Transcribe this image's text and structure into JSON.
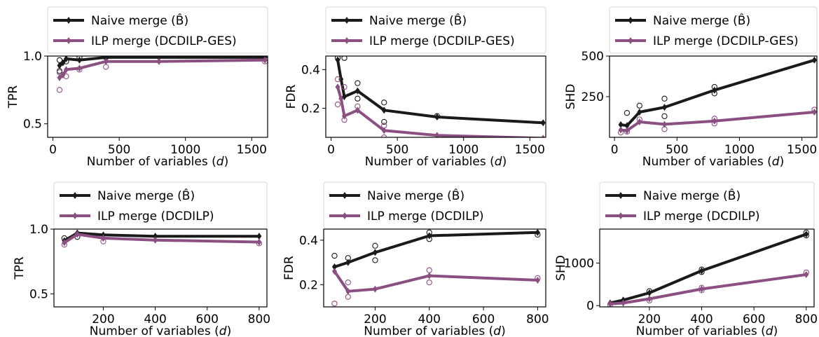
{
  "chart_data": [
    {
      "type": "line",
      "row": "top",
      "xlabel": "Number of variables (d)",
      "ylabel": "TPR",
      "xlim": [
        -40,
        1620
      ],
      "ylim": [
        0.4,
        1.0
      ],
      "xticks": [
        0,
        500,
        1000,
        1500
      ],
      "yticks": [
        0.5,
        1.0
      ],
      "ytick_labels": [
        "0.5",
        "1.0"
      ],
      "series": [
        {
          "name": "Naive merge (B̂)",
          "color": "#1a1a1a",
          "x": [
            50,
            75,
            100,
            200,
            400,
            800,
            1600
          ],
          "y": [
            0.93,
            0.95,
            0.98,
            0.97,
            0.99,
            0.99,
            0.99
          ],
          "samples": [
            [
              50,
              0.89
            ],
            [
              50,
              0.97
            ],
            [
              100,
              0.96
            ],
            [
              200,
              0.99
            ],
            [
              400,
              0.99
            ]
          ]
        },
        {
          "name": "ILP merge (DCDILP-GES)",
          "color": "#8b4f82",
          "x": [
            50,
            75,
            100,
            200,
            400,
            800,
            1600
          ],
          "y": [
            0.84,
            0.86,
            0.9,
            0.91,
            0.96,
            0.96,
            0.97
          ],
          "samples": [
            [
              50,
              0.75
            ],
            [
              50,
              0.88
            ],
            [
              100,
              0.85
            ],
            [
              200,
              0.9
            ],
            [
              400,
              0.92
            ],
            [
              1600,
              0.96
            ]
          ]
        }
      ]
    },
    {
      "type": "line",
      "row": "top",
      "xlabel": "Number of variables (d)",
      "ylabel": "FDR",
      "xlim": [
        -40,
        1620
      ],
      "ylim": [
        0.05,
        0.47
      ],
      "xticks": [
        0,
        500,
        1000,
        1500
      ],
      "yticks": [
        0.2,
        0.4
      ],
      "ytick_labels": [
        "0.2",
        "0.4"
      ],
      "series": [
        {
          "name": "Naive merge (B̂)",
          "color": "#1a1a1a",
          "x": [
            50,
            75,
            100,
            200,
            400,
            800,
            1600
          ],
          "y": [
            0.45,
            0.35,
            0.26,
            0.29,
            0.19,
            0.155,
            0.125
          ],
          "samples": [
            [
              50,
              0.46
            ],
            [
              100,
              0.46
            ],
            [
              200,
              0.33
            ],
            [
              200,
              0.25
            ],
            [
              400,
              0.23
            ],
            [
              400,
              0.13
            ],
            [
              800,
              0.16
            ]
          ]
        },
        {
          "name": "ILP merge (DCDILP-GES)",
          "color": "#8b4f82",
          "x": [
            50,
            75,
            100,
            200,
            400,
            800,
            1600
          ],
          "y": [
            0.31,
            0.25,
            0.16,
            0.19,
            0.085,
            0.06,
            0.045
          ],
          "samples": [
            [
              50,
              0.35
            ],
            [
              50,
              0.22
            ],
            [
              100,
              0.31
            ],
            [
              100,
              0.14
            ],
            [
              200,
              0.21
            ],
            [
              400,
              0.11
            ],
            [
              400,
              0.05
            ]
          ]
        }
      ]
    },
    {
      "type": "line",
      "row": "top",
      "xlabel": "Number of variables (d)",
      "ylabel": "SHD",
      "xlim": [
        -40,
        1620
      ],
      "ylim": [
        0,
        500
      ],
      "xticks": [
        0,
        500,
        1000,
        1500
      ],
      "yticks": [
        250,
        500
      ],
      "ytick_labels": [
        "250",
        "500"
      ],
      "series": [
        {
          "name": "Naive merge (B̂)",
          "color": "#1a1a1a",
          "x": [
            50,
            100,
            200,
            400,
            800,
            1600
          ],
          "y": [
            78,
            72,
            155,
            185,
            290,
            475
          ],
          "samples": [
            [
              100,
              150
            ],
            [
              200,
              195
            ],
            [
              400,
              238
            ],
            [
              400,
              130
            ],
            [
              800,
              310
            ],
            [
              800,
              270
            ]
          ]
        },
        {
          "name": "ILP merge (DCDILP-GES)",
          "color": "#8b4f82",
          "x": [
            50,
            100,
            200,
            400,
            800,
            1600
          ],
          "y": [
            45,
            42,
            95,
            80,
            100,
            155
          ],
          "samples": [
            [
              50,
              30
            ],
            [
              100,
              35
            ],
            [
              200,
              110
            ],
            [
              400,
              50
            ],
            [
              800,
              115
            ],
            [
              800,
              85
            ],
            [
              1600,
              170
            ]
          ]
        }
      ]
    },
    {
      "type": "line",
      "row": "bottom",
      "xlabel": "Number of variables (d)",
      "ylabel": "TPR",
      "xlim": [
        10,
        830
      ],
      "ylim": [
        0.4,
        1.0
      ],
      "xticks": [
        200,
        400,
        600,
        800
      ],
      "yticks": [
        0.5,
        1.0
      ],
      "ytick_labels": [
        "0.5",
        "1.0"
      ],
      "series": [
        {
          "name": "Naive merge (B̂)",
          "color": "#1a1a1a",
          "x": [
            50,
            100,
            200,
            400,
            800
          ],
          "y": [
            0.91,
            0.97,
            0.955,
            0.945,
            0.945
          ],
          "samples": [
            [
              50,
              0.93
            ],
            [
              100,
              0.94
            ]
          ]
        },
        {
          "name": "ILP merge (DCDILP)",
          "color": "#8b4f82",
          "x": [
            50,
            100,
            200,
            400,
            800
          ],
          "y": [
            0.895,
            0.96,
            0.93,
            0.915,
            0.9
          ],
          "samples": [
            [
              50,
              0.88
            ],
            [
              200,
              0.905
            ],
            [
              800,
              0.89
            ]
          ]
        }
      ]
    },
    {
      "type": "line",
      "row": "bottom",
      "xlabel": "Number of variables (d)",
      "ylabel": "FDR",
      "xlim": [
        10,
        830
      ],
      "ylim": [
        0.1,
        0.45
      ],
      "xticks": [
        200,
        400,
        600,
        800
      ],
      "yticks": [
        0.2,
        0.4
      ],
      "ytick_labels": [
        "0.2",
        "0.4"
      ],
      "series": [
        {
          "name": "Naive merge (B̂)",
          "color": "#1a1a1a",
          "x": [
            50,
            100,
            200,
            400,
            800
          ],
          "y": [
            0.28,
            0.3,
            0.345,
            0.42,
            0.435
          ],
          "samples": [
            [
              50,
              0.33
            ],
            [
              100,
              0.32
            ],
            [
              200,
              0.375
            ],
            [
              200,
              0.31
            ],
            [
              400,
              0.435
            ],
            [
              400,
              0.405
            ],
            [
              800,
              0.425
            ]
          ]
        },
        {
          "name": "ILP merge (DCDILP)",
          "color": "#8b4f82",
          "x": [
            50,
            100,
            200,
            400,
            800
          ],
          "y": [
            0.26,
            0.17,
            0.18,
            0.24,
            0.22
          ],
          "samples": [
            [
              50,
              0.115
            ],
            [
              100,
              0.145
            ],
            [
              100,
              0.21
            ],
            [
              400,
              0.265
            ],
            [
              400,
              0.21
            ],
            [
              800,
              0.23
            ]
          ]
        }
      ]
    },
    {
      "type": "line",
      "row": "bottom",
      "xlabel": "Number of variables (d)",
      "ylabel": "SHD",
      "xlim": [
        10,
        830
      ],
      "ylim": [
        -30,
        1800
      ],
      "xticks": [
        200,
        400,
        600,
        800
      ],
      "yticks": [
        0,
        1000
      ],
      "ytick_labels": [
        "0",
        "1000"
      ],
      "series": [
        {
          "name": "Naive merge (B̂)",
          "color": "#1a1a1a",
          "x": [
            50,
            100,
            200,
            400,
            800
          ],
          "y": [
            60,
            130,
            300,
            820,
            1680
          ],
          "samples": [
            [
              200,
              340
            ],
            [
              400,
              850
            ],
            [
              400,
              790
            ],
            [
              800,
              1720
            ],
            [
              800,
              1650
            ]
          ]
        },
        {
          "name": "ILP merge (DCDILP)",
          "color": "#8b4f82",
          "x": [
            50,
            100,
            200,
            400,
            800
          ],
          "y": [
            40,
            60,
            160,
            390,
            730
          ],
          "samples": [
            [
              50,
              20
            ],
            [
              200,
              120
            ],
            [
              400,
              420
            ],
            [
              400,
              360
            ],
            [
              800,
              780
            ]
          ]
        }
      ]
    }
  ]
}
